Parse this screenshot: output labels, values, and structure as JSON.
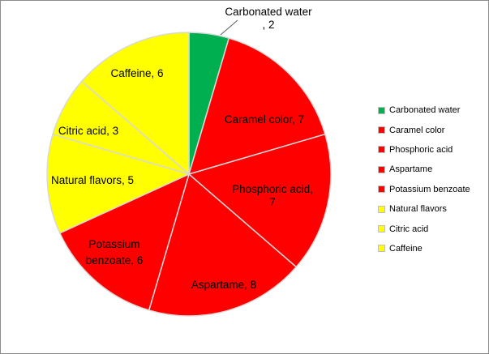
{
  "chart_data": {
    "type": "pie",
    "title": "",
    "categories": [
      "Carbonated water",
      "Caramel color",
      "Phosphoric acid",
      "Aspartame",
      "Potassium benzoate",
      "Natural flavors",
      "Citric acid",
      "Caffeine"
    ],
    "values": [
      2,
      7,
      7,
      8,
      6,
      5,
      3,
      6
    ],
    "data_labels": [
      "Carbonated water, 2",
      "Caramel color, 7",
      "Phosphoric acid, 7",
      "Aspartame, 8",
      "Potassium benzoate, 6",
      "Natural flavors, 5",
      "Citric acid, 3",
      "Caffeine, 6"
    ],
    "colors": [
      "#00b050",
      "#ff0000",
      "#ff0000",
      "#ff0000",
      "#ff0000",
      "#ffff00",
      "#ffff00",
      "#ffff00"
    ],
    "start_angle_deg": 0,
    "direction": "clockwise",
    "legend_position": "right"
  }
}
